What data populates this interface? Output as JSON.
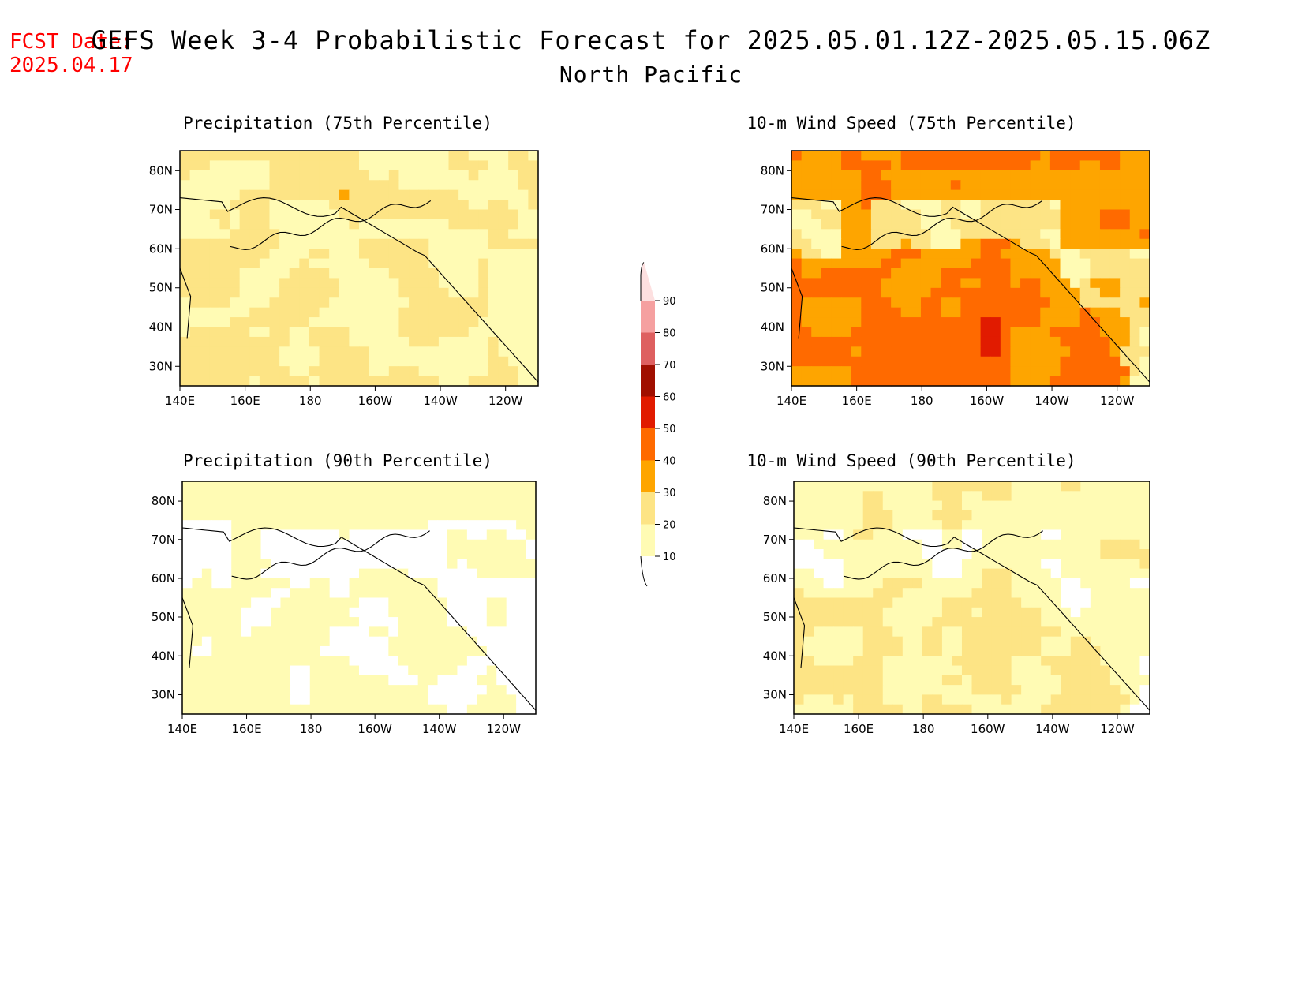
{
  "header": {
    "fcst_label": "FCST Date:",
    "fcst_date": "2025.04.17",
    "title": "GEFS Week 3-4 Probabilistic Forecast for 2025.05.01.12Z-2025.05.15.06Z",
    "subtitle": "North Pacific"
  },
  "panels": [
    {
      "title": "Precipitation (75th Percentile)",
      "field": "precip75"
    },
    {
      "title": "10-m Wind Speed (75th Percentile)",
      "field": "wind75"
    },
    {
      "title": "Precipitation (90th Percentile)",
      "field": "precip90"
    },
    {
      "title": "10-m Wind Speed (90th Percentile)",
      "field": "wind90"
    }
  ],
  "axes": {
    "lat_ticks": [
      "80N",
      "70N",
      "60N",
      "50N",
      "40N",
      "30N"
    ],
    "lon_ticks": [
      "140E",
      "160E",
      "180",
      "160W",
      "140W",
      "120W"
    ]
  },
  "colorbar": {
    "labels": [
      "10",
      "20",
      "30",
      "40",
      "50",
      "60",
      "70",
      "80",
      "90"
    ],
    "colors": [
      "#fffbb4",
      "#fde485",
      "#fea500",
      "#ff6a00",
      "#e11b00",
      "#a00f00",
      "#de6060",
      "#f5a0a0",
      "#fde0e0"
    ]
  }
}
